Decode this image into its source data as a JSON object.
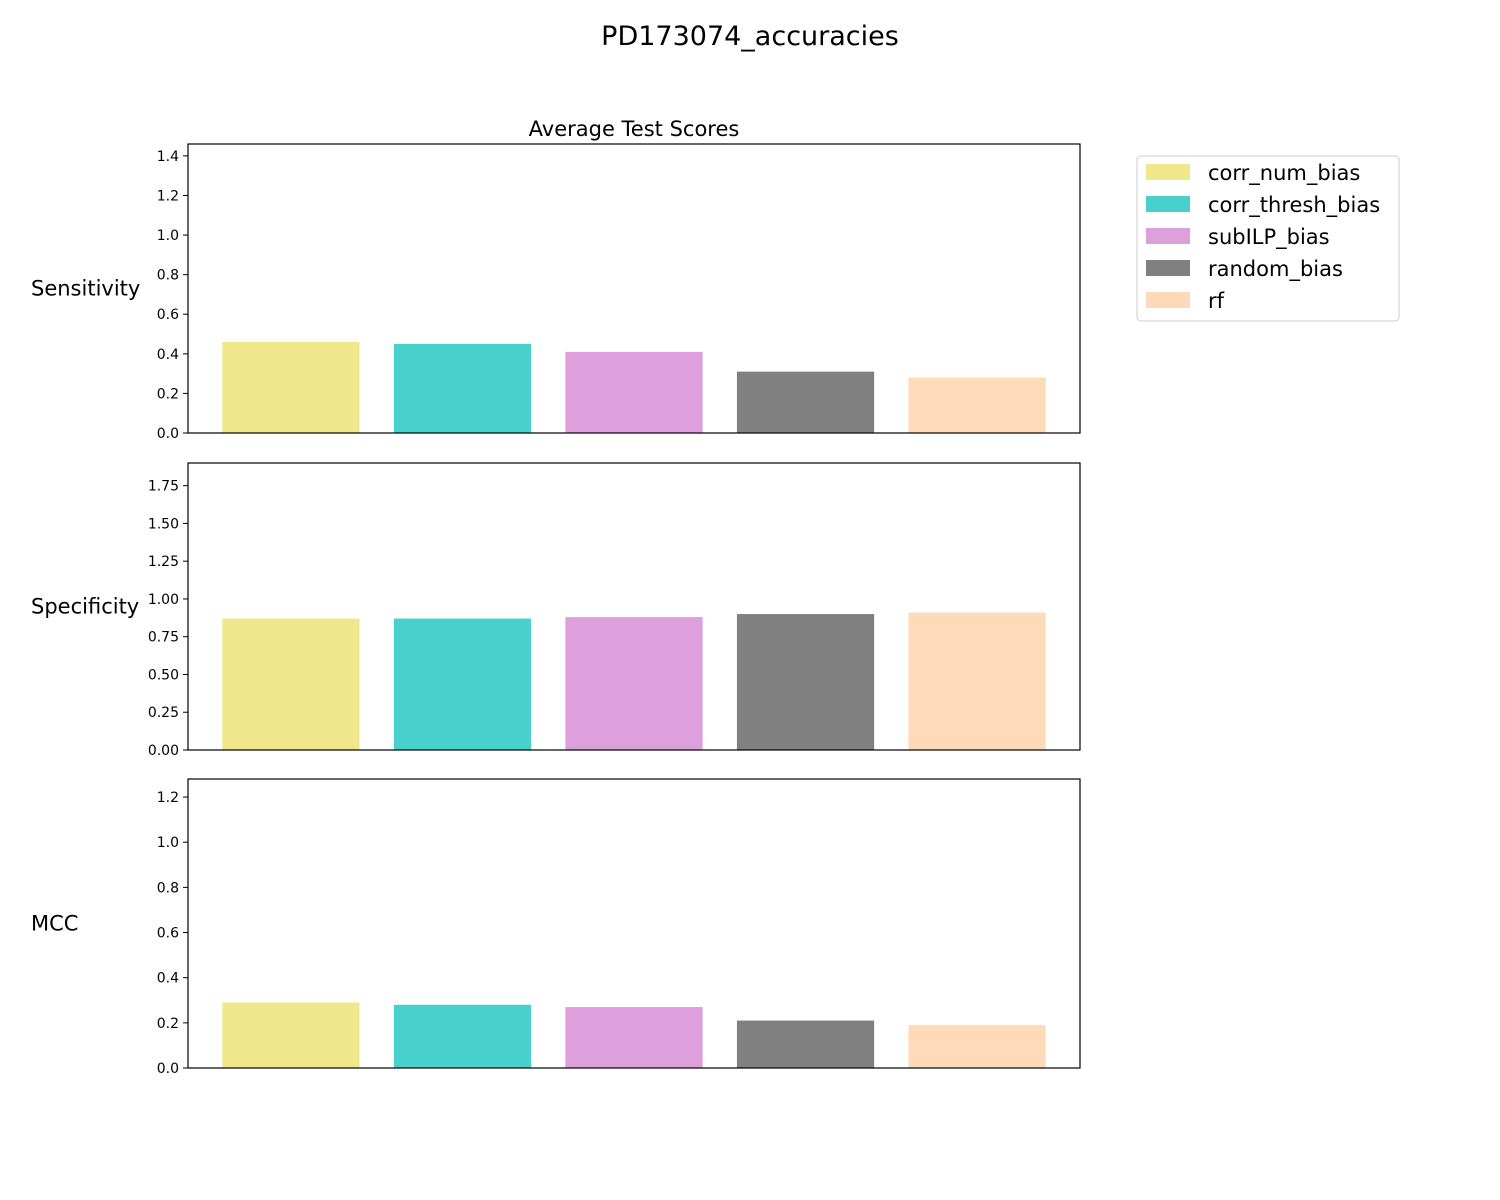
{
  "figure": {
    "title": "PD173074_accuracies"
  },
  "chart_data": [
    {
      "type": "bar",
      "title": "Average Test Scores",
      "ylabel": "Sensitivity",
      "categories": [
        "corr_num_bias",
        "corr_thresh_bias",
        "subILP_bias",
        "random_bias",
        "rf"
      ],
      "values": [
        0.46,
        0.45,
        0.41,
        0.31,
        0.28
      ],
      "ylim": [
        0,
        1.46
      ],
      "yticks": [
        0.0,
        0.2,
        0.4,
        0.6,
        0.8,
        1.0,
        1.2,
        1.4
      ],
      "ytick_labels": [
        "0.0",
        "0.2",
        "0.4",
        "0.6",
        "0.8",
        "1.0",
        "1.2",
        "1.4"
      ],
      "grid": false
    },
    {
      "type": "bar",
      "title": "",
      "ylabel": "Specificity",
      "categories": [
        "corr_num_bias",
        "corr_thresh_bias",
        "subILP_bias",
        "random_bias",
        "rf"
      ],
      "values": [
        0.87,
        0.87,
        0.88,
        0.9,
        0.91
      ],
      "ylim": [
        0,
        1.9
      ],
      "yticks": [
        0.0,
        0.25,
        0.5,
        0.75,
        1.0,
        1.25,
        1.5,
        1.75
      ],
      "ytick_labels": [
        "0.00",
        "0.25",
        "0.50",
        "0.75",
        "1.00",
        "1.25",
        "1.50",
        "1.75"
      ],
      "grid": false
    },
    {
      "type": "bar",
      "title": "",
      "ylabel": "MCC",
      "categories": [
        "corr_num_bias",
        "corr_thresh_bias",
        "subILP_bias",
        "random_bias",
        "rf"
      ],
      "values": [
        0.29,
        0.28,
        0.27,
        0.21,
        0.19
      ],
      "ylim": [
        0,
        1.28
      ],
      "yticks": [
        0.0,
        0.2,
        0.4,
        0.6,
        0.8,
        1.0,
        1.2
      ],
      "ytick_labels": [
        "0.0",
        "0.2",
        "0.4",
        "0.6",
        "0.8",
        "1.0",
        "1.2"
      ],
      "grid": false
    }
  ],
  "legend": {
    "placement": "upper-right-outside",
    "entries": [
      {
        "label": "corr_num_bias",
        "color": "#f0e68c"
      },
      {
        "label": "corr_thresh_bias",
        "color": "#48d1cc"
      },
      {
        "label": "subILP_bias",
        "color": "#dda0dd"
      },
      {
        "label": "random_bias",
        "color": "#808080"
      },
      {
        "label": "rf",
        "color": "#ffdab9"
      }
    ]
  }
}
